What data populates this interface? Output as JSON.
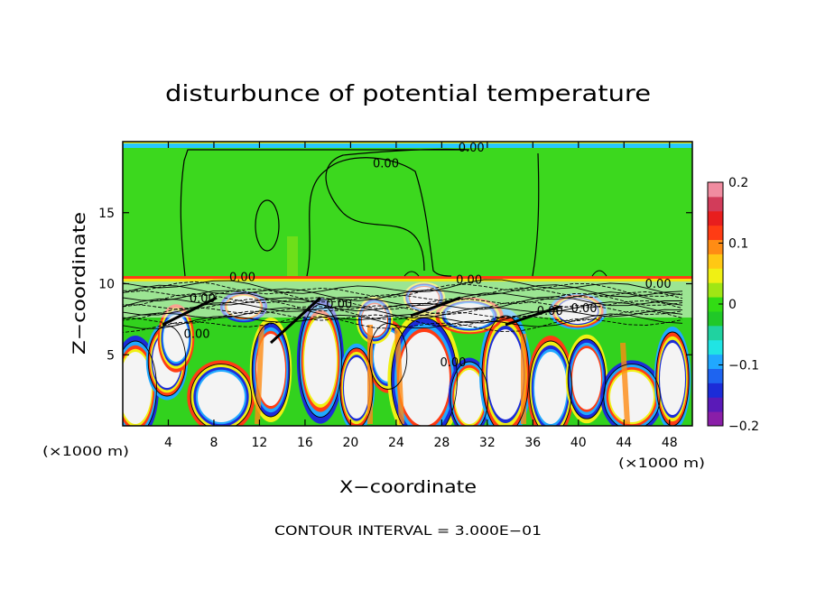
{
  "chart_data": {
    "type": "heatmap",
    "title": "disturbunce of potential temperature",
    "xlabel": "X−coordinate",
    "ylabel": "Z−coordinate",
    "x_unit_left": "(×1000 m)",
    "x_unit_right": "(×1000 m)",
    "xlim": [
      0,
      50
    ],
    "ylim": [
      0,
      20
    ],
    "x_ticks": [
      4,
      8,
      12,
      16,
      20,
      24,
      28,
      32,
      36,
      40,
      44,
      48
    ],
    "x_tick_labels": [
      "4",
      "8",
      "12",
      "16",
      "20",
      "24",
      "28",
      "32",
      "36",
      "40",
      "44",
      "48"
    ],
    "y_ticks": [
      5,
      10,
      15
    ],
    "y_tick_labels": [
      "5",
      "10",
      "15"
    ],
    "colorbar": {
      "range": [
        -0.2,
        0.2
      ],
      "ticks": [
        0.2,
        0.1,
        0,
        -0.1,
        -0.2
      ],
      "tick_labels": [
        "0.2",
        "0.1",
        "0",
        "−0.1",
        "−0.2"
      ],
      "colors": [
        "#8a1ea8",
        "#5a1ab8",
        "#1c2cd8",
        "#1e64f0",
        "#20a8ff",
        "#20e4e4",
        "#20d2a0",
        "#20c828",
        "#32dc14",
        "#a0e614",
        "#f0f014",
        "#ffc814",
        "#ff8c14",
        "#ff3c14",
        "#e81e1e",
        "#d23c5a",
        "#f08ca0"
      ]
    },
    "contour_labels": [
      {
        "text": "0.00",
        "x": 30.6,
        "z": 19.3
      },
      {
        "text": "0.00",
        "x": 23.1,
        "z": 18.2
      },
      {
        "text": "0.00",
        "x": 10.5,
        "z": 10.2
      },
      {
        "text": "0.00",
        "x": 30.4,
        "z": 10.0
      },
      {
        "text": "0.00",
        "x": 47.0,
        "z": 9.7
      },
      {
        "text": "0.00",
        "x": 7.0,
        "z": 8.7
      },
      {
        "text": "0.00",
        "x": 19.0,
        "z": 8.3
      },
      {
        "text": "0.00",
        "x": 37.5,
        "z": 7.8
      },
      {
        "text": "0.00",
        "x": 40.5,
        "z": 8.0
      },
      {
        "text": "0.00",
        "x": 6.5,
        "z": 6.2
      },
      {
        "text": "0.00",
        "x": 29.0,
        "z": 4.2
      }
    ],
    "footer": "CONTOUR INTERVAL = 3.000E−01"
  }
}
